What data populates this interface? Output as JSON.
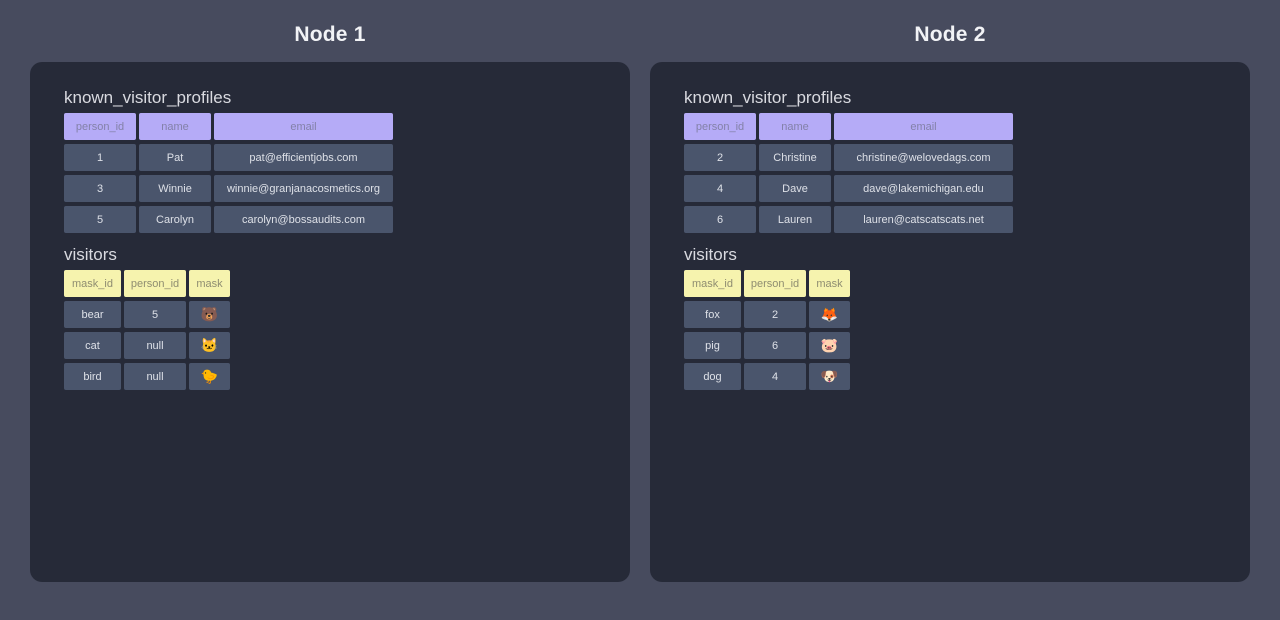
{
  "colors": {
    "page_bg": "#474b5e",
    "panel_bg": "#262a38",
    "cell_bg": "#4a556c",
    "cell_text": "#dde0e7",
    "purple_header_bg": "#b5abf7",
    "purple_header_text": "#8381a8",
    "yellow_header_bg": "#f6f3ae",
    "yellow_header_text": "#8f8d71",
    "node_title_text": "#f2f3f6",
    "table_title_text": "#d9dae0"
  },
  "nodes": [
    {
      "title": "Node 1",
      "tables": [
        {
          "name": "known_visitor_profiles",
          "theme": "purple",
          "columns": [
            "person_id",
            "name",
            "email"
          ],
          "rows": [
            [
              "1",
              "Pat",
              "pat@efficientjobs.com"
            ],
            [
              "3",
              "Winnie",
              "winnie@granjanacosmetics.org"
            ],
            [
              "5",
              "Carolyn",
              "carolyn@bossaudits.com"
            ]
          ]
        },
        {
          "name": "visitors",
          "theme": "yellow",
          "columns": [
            "mask_id",
            "person_id",
            "mask"
          ],
          "rows": [
            [
              "bear",
              "5",
              "🐻"
            ],
            [
              "cat",
              "null",
              "🐱"
            ],
            [
              "bird",
              "null",
              "🐤"
            ]
          ]
        }
      ]
    },
    {
      "title": "Node 2",
      "tables": [
        {
          "name": "known_visitor_profiles",
          "theme": "purple",
          "columns": [
            "person_id",
            "name",
            "email"
          ],
          "rows": [
            [
              "2",
              "Christine",
              "christine@welovedags.com"
            ],
            [
              "4",
              "Dave",
              "dave@lakemichigan.edu"
            ],
            [
              "6",
              "Lauren",
              "lauren@catscatscats.net"
            ]
          ]
        },
        {
          "name": "visitors",
          "theme": "yellow",
          "columns": [
            "mask_id",
            "person_id",
            "mask"
          ],
          "rows": [
            [
              "fox",
              "2",
              "🦊"
            ],
            [
              "pig",
              "6",
              "🐷"
            ],
            [
              "dog",
              "4",
              "🐶"
            ]
          ]
        }
      ]
    }
  ]
}
